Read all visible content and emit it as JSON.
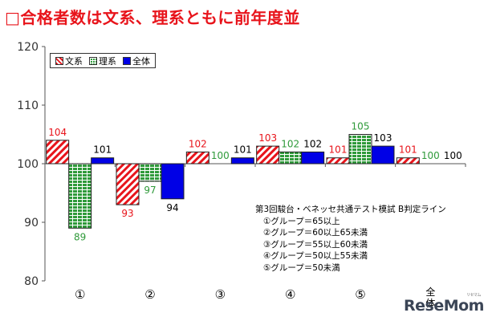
{
  "title": "□合格者数は文系、理系ともに前年度並",
  "chart_data": {
    "type": "bar",
    "categories": [
      "①",
      "②",
      "③",
      "④",
      "⑤",
      "全体"
    ],
    "series": [
      {
        "name": "文系",
        "values": [
          104,
          93,
          102,
          103,
          101,
          101
        ],
        "color": "#e8141b"
      },
      {
        "name": "理系",
        "values": [
          89,
          97,
          100,
          102,
          105,
          100
        ],
        "color": "#2f9a3a"
      },
      {
        "name": "全体",
        "values": [
          101,
          94,
          101,
          102,
          103,
          100
        ],
        "color": "#0000e6"
      }
    ],
    "ylim": [
      80,
      120
    ],
    "yticks": [
      80,
      90,
      100,
      110,
      120
    ],
    "baseline": 100,
    "grid": false,
    "legend": "top-left"
  },
  "note": {
    "heading": "第3回駿台・ベネッセ共通テスト模試 B判定ライン",
    "lines": [
      "①グループ＝65以上",
      "②グループ＝60以上65未満",
      "③グループ＝55以上60未満",
      "④グループ＝50以上55未満",
      "⑤グループ＝50未満"
    ]
  },
  "logo": {
    "text": "ReseMom",
    "sub": "リセマム"
  }
}
